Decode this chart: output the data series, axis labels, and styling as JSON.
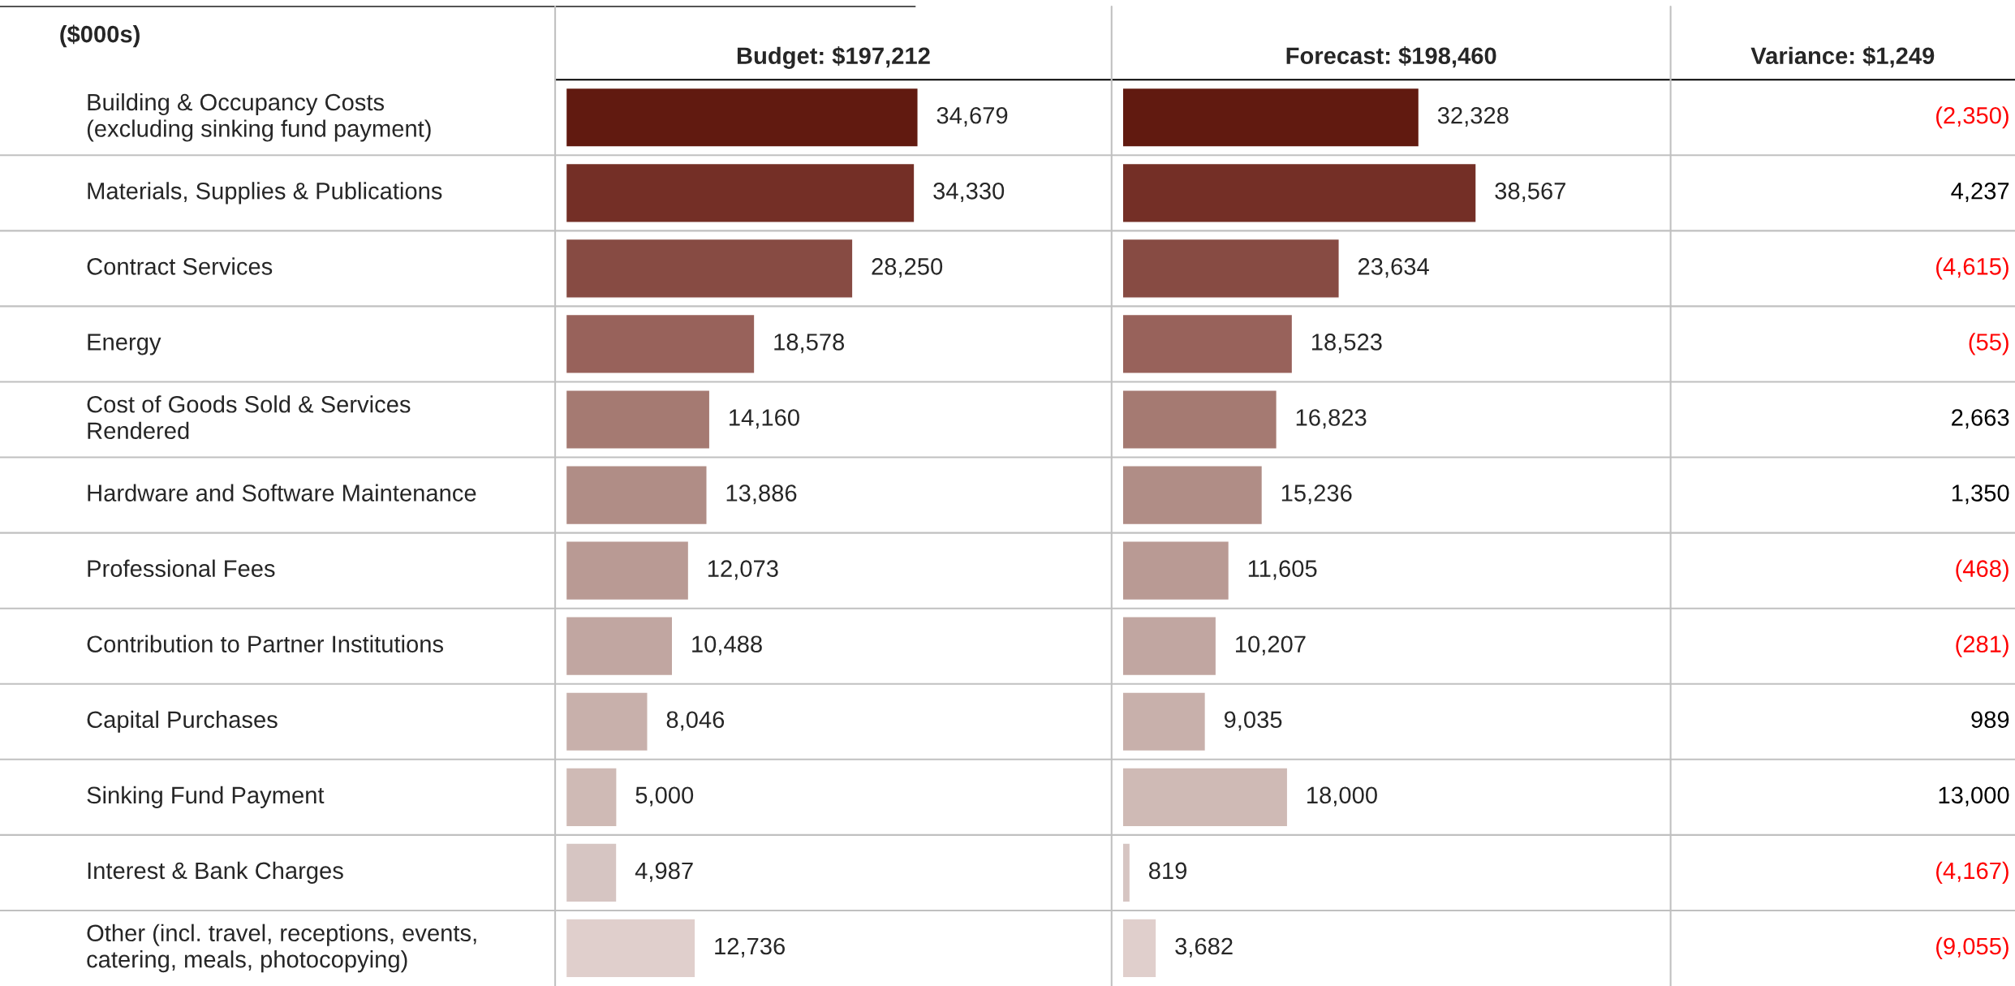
{
  "chart_data": [
    {
      "type": "bar",
      "orientation": "horizontal",
      "title": "Budget: $197,212",
      "ylabel": "($000s)",
      "value_labels": [
        "34,679",
        "34,330",
        "28,250",
        "18,578",
        "14,160",
        "13,886",
        "12,073",
        "10,488",
        "8,046",
        "5,000",
        "4,987",
        "12,736"
      ],
      "categories": [
        "Building & Occupancy Costs\n(excluding sinking fund payment)",
        "Materials, Supplies & Publications",
        "Contract Services",
        "Energy",
        "Cost of Goods Sold & Services\nRendered",
        "Hardware and Software Maintenance",
        "Professional Fees",
        "Contribution to Partner Institutions",
        "Capital Purchases",
        "Sinking Fund Payment",
        "Interest & Bank Charges",
        "Other (incl. travel, receptions, events,\ncatering, meals, photocopying)"
      ],
      "values": [
        34679,
        34330,
        28250,
        18578,
        14160,
        13886,
        12073,
        10488,
        8046,
        5000,
        4987,
        12736
      ],
      "colors": [
        "#611a10",
        "#742f26",
        "#874b43",
        "#98625b",
        "#a57a72",
        "#b08d86",
        "#b99a94",
        "#c1a6a1",
        "#c8b0ab",
        "#cfbab5",
        "#d6c5c2",
        "#e0cfcc"
      ]
    },
    {
      "type": "bar",
      "orientation": "horizontal",
      "title": "Forecast: $198,460",
      "value_labels": [
        "32,328",
        "38,567",
        "23,634",
        "18,523",
        "16,823",
        "15,236",
        "11,605",
        "10,207",
        "9,035",
        "18,000",
        "819",
        "3,682"
      ],
      "categories": [
        null,
        null,
        null,
        null,
        null,
        null,
        null,
        null,
        null,
        null,
        null,
        null
      ],
      "values": [
        32328,
        38567,
        23634,
        18523,
        16823,
        15236,
        11605,
        10207,
        9035,
        18000,
        819,
        3682
      ],
      "colors": [
        "#611a10",
        "#742f26",
        "#874b43",
        "#98625b",
        "#a57a72",
        "#b08d86",
        "#b99a94",
        "#c1a6a1",
        "#c8b0ab",
        "#cfbab5",
        "#d6c5c2",
        "#e0cfcc"
      ]
    },
    {
      "type": "other",
      "title": "Variance: $1,249",
      "categories": [
        null,
        null,
        null,
        null,
        null,
        null,
        null,
        null,
        null,
        null,
        null,
        null
      ],
      "values": [
        -2350,
        4237,
        -4615,
        -55,
        2663,
        1350,
        -468,
        -281,
        989,
        13000,
        -4167,
        -9055
      ],
      "value_labels": [
        "(2,350)",
        "4,237",
        "(4,615)",
        "(55)",
        "2,663",
        "1,350",
        "(468)",
        "(281)",
        "989",
        "13,000",
        "(4,167)",
        "(9,055)"
      ],
      "colors": [
        "#ff0000",
        "#000000",
        "#ff0000",
        "#ff0000",
        "#000000",
        "#000000",
        "#ff0000",
        "#ff0000",
        "#000000",
        "#000000",
        "#ff0000",
        "#ff0000"
      ]
    }
  ]
}
